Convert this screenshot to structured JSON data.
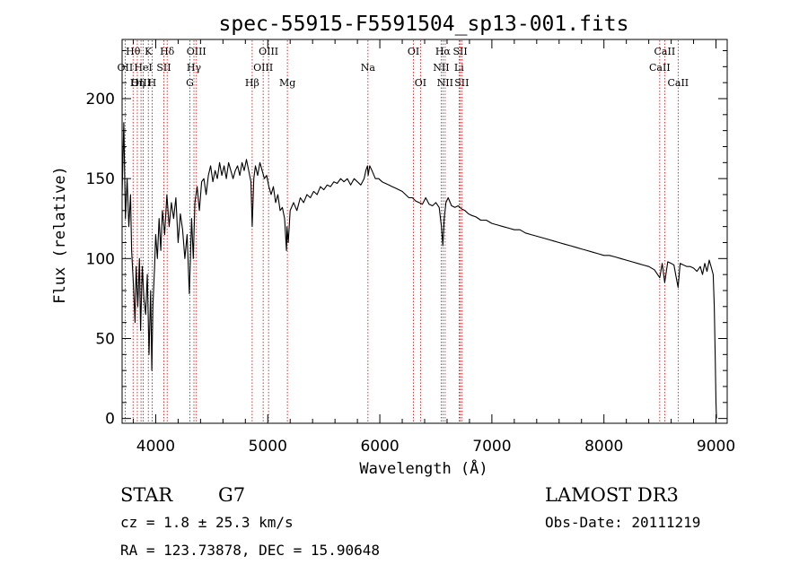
{
  "chart_data": {
    "type": "line",
    "title": "spec-55915-F5591504_sp13-001.fits",
    "xlabel": "Wavelength (Å)",
    "ylabel": "Flux (relative)",
    "xlim": [
      3700,
      9100
    ],
    "ylim": [
      -3,
      237
    ],
    "x_ticks": [
      {
        "value": 4000,
        "label": "4000"
      },
      {
        "value": 5000,
        "label": "5000"
      },
      {
        "value": 6000,
        "label": "6000"
      },
      {
        "value": 7000,
        "label": "7000"
      },
      {
        "value": 8000,
        "label": "8000"
      },
      {
        "value": 9000,
        "label": "9000"
      }
    ],
    "y_ticks": [
      {
        "value": 0,
        "label": "0"
      },
      {
        "value": 50,
        "label": "50"
      },
      {
        "value": 100,
        "label": "100"
      },
      {
        "value": 150,
        "label": "150"
      },
      {
        "value": 200,
        "label": "200"
      }
    ],
    "x_minor_step": 200,
    "y_minor_step": 10,
    "line_color": "#000000",
    "marker_color": "#cc0000",
    "series": [
      {
        "name": "flux",
        "points": [
          [
            3700,
            140
          ],
          [
            3715,
            185
          ],
          [
            3730,
            125
          ],
          [
            3745,
            150
          ],
          [
            3760,
            120
          ],
          [
            3775,
            140
          ],
          [
            3785,
            105
          ],
          [
            3800,
            85
          ],
          [
            3815,
            60
          ],
          [
            3825,
            95
          ],
          [
            3840,
            70
          ],
          [
            3855,
            100
          ],
          [
            3865,
            55
          ],
          [
            3880,
            95
          ],
          [
            3895,
            75
          ],
          [
            3910,
            65
          ],
          [
            3925,
            90
          ],
          [
            3940,
            40
          ],
          [
            3955,
            80
          ],
          [
            3965,
            30
          ],
          [
            3975,
            70
          ],
          [
            3990,
            95
          ],
          [
            4000,
            115
          ],
          [
            4015,
            100
          ],
          [
            4030,
            125
          ],
          [
            4045,
            105
          ],
          [
            4060,
            130
          ],
          [
            4080,
            115
          ],
          [
            4100,
            140
          ],
          [
            4120,
            120
          ],
          [
            4140,
            135
          ],
          [
            4160,
            125
          ],
          [
            4180,
            138
          ],
          [
            4200,
            110
          ],
          [
            4220,
            128
          ],
          [
            4240,
            118
          ],
          [
            4260,
            100
          ],
          [
            4280,
            115
          ],
          [
            4300,
            78
          ],
          [
            4320,
            125
          ],
          [
            4335,
            100
          ],
          [
            4350,
            135
          ],
          [
            4370,
            145
          ],
          [
            4390,
            130
          ],
          [
            4410,
            148
          ],
          [
            4430,
            150
          ],
          [
            4450,
            140
          ],
          [
            4470,
            152
          ],
          [
            4490,
            158
          ],
          [
            4510,
            148
          ],
          [
            4530,
            155
          ],
          [
            4550,
            150
          ],
          [
            4570,
            160
          ],
          [
            4590,
            152
          ],
          [
            4610,
            158
          ],
          [
            4630,
            150
          ],
          [
            4650,
            160
          ],
          [
            4670,
            155
          ],
          [
            4690,
            150
          ],
          [
            4710,
            155
          ],
          [
            4730,
            158
          ],
          [
            4750,
            152
          ],
          [
            4770,
            160
          ],
          [
            4790,
            155
          ],
          [
            4810,
            162
          ],
          [
            4830,
            155
          ],
          [
            4850,
            148
          ],
          [
            4861,
            120
          ],
          [
            4875,
            150
          ],
          [
            4890,
            158
          ],
          [
            4910,
            152
          ],
          [
            4930,
            160
          ],
          [
            4950,
            155
          ],
          [
            4970,
            150
          ],
          [
            4990,
            152
          ],
          [
            5010,
            145
          ],
          [
            5030,
            140
          ],
          [
            5050,
            145
          ],
          [
            5070,
            135
          ],
          [
            5090,
            140
          ],
          [
            5110,
            130
          ],
          [
            5130,
            132
          ],
          [
            5150,
            125
          ],
          [
            5167,
            105
          ],
          [
            5172,
            120
          ],
          [
            5183,
            110
          ],
          [
            5200,
            130
          ],
          [
            5230,
            135
          ],
          [
            5260,
            130
          ],
          [
            5290,
            138
          ],
          [
            5320,
            135
          ],
          [
            5350,
            140
          ],
          [
            5380,
            138
          ],
          [
            5410,
            142
          ],
          [
            5440,
            140
          ],
          [
            5470,
            145
          ],
          [
            5500,
            143
          ],
          [
            5530,
            146
          ],
          [
            5560,
            145
          ],
          [
            5590,
            148
          ],
          [
            5620,
            147
          ],
          [
            5650,
            150
          ],
          [
            5680,
            148
          ],
          [
            5710,
            150
          ],
          [
            5740,
            146
          ],
          [
            5770,
            150
          ],
          [
            5800,
            148
          ],
          [
            5830,
            146
          ],
          [
            5860,
            150
          ],
          [
            5875,
            155
          ],
          [
            5890,
            158
          ],
          [
            5896,
            152
          ],
          [
            5910,
            158
          ],
          [
            5930,
            155
          ],
          [
            5960,
            150
          ],
          [
            5990,
            150
          ],
          [
            6020,
            148
          ],
          [
            6050,
            147
          ],
          [
            6080,
            146
          ],
          [
            6110,
            145
          ],
          [
            6140,
            144
          ],
          [
            6170,
            143
          ],
          [
            6200,
            142
          ],
          [
            6230,
            140
          ],
          [
            6260,
            138
          ],
          [
            6290,
            138
          ],
          [
            6320,
            136
          ],
          [
            6350,
            135
          ],
          [
            6380,
            134
          ],
          [
            6410,
            138
          ],
          [
            6440,
            134
          ],
          [
            6470,
            133
          ],
          [
            6500,
            135
          ],
          [
            6530,
            132
          ],
          [
            6550,
            120
          ],
          [
            6563,
            108
          ],
          [
            6575,
            125
          ],
          [
            6590,
            135
          ],
          [
            6610,
            138
          ],
          [
            6640,
            133
          ],
          [
            6670,
            132
          ],
          [
            6700,
            133
          ],
          [
            6730,
            131
          ],
          [
            6760,
            130
          ],
          [
            6790,
            128
          ],
          [
            6820,
            127
          ],
          [
            6860,
            126
          ],
          [
            6900,
            124
          ],
          [
            6950,
            124
          ],
          [
            7000,
            122
          ],
          [
            7050,
            121
          ],
          [
            7100,
            120
          ],
          [
            7150,
            119
          ],
          [
            7200,
            118
          ],
          [
            7250,
            118
          ],
          [
            7300,
            116
          ],
          [
            7350,
            115
          ],
          [
            7400,
            114
          ],
          [
            7450,
            113
          ],
          [
            7500,
            112
          ],
          [
            7550,
            111
          ],
          [
            7600,
            110
          ],
          [
            7650,
            109
          ],
          [
            7700,
            108
          ],
          [
            7750,
            107
          ],
          [
            7800,
            106
          ],
          [
            7850,
            105
          ],
          [
            7900,
            104
          ],
          [
            7950,
            103
          ],
          [
            8000,
            102
          ],
          [
            8050,
            102
          ],
          [
            8100,
            101
          ],
          [
            8150,
            100
          ],
          [
            8200,
            99
          ],
          [
            8250,
            98
          ],
          [
            8300,
            97
          ],
          [
            8350,
            96
          ],
          [
            8400,
            95
          ],
          [
            8450,
            93
          ],
          [
            8498,
            88
          ],
          [
            8520,
            97
          ],
          [
            8542,
            85
          ],
          [
            8570,
            98
          ],
          [
            8600,
            97
          ],
          [
            8625,
            96
          ],
          [
            8640,
            90
          ],
          [
            8662,
            82
          ],
          [
            8680,
            97
          ],
          [
            8710,
            96
          ],
          [
            8740,
            95
          ],
          [
            8770,
            95
          ],
          [
            8800,
            94
          ],
          [
            8830,
            92
          ],
          [
            8860,
            95
          ],
          [
            8880,
            90
          ],
          [
            8900,
            97
          ],
          [
            8920,
            92
          ],
          [
            8940,
            99
          ],
          [
            8960,
            94
          ],
          [
            8975,
            90
          ],
          [
            8985,
            70
          ],
          [
            8993,
            40
          ],
          [
            9000,
            10
          ],
          [
            9005,
            0
          ]
        ]
      }
    ],
    "line_markers": [
      {
        "label": "Hθ",
        "wavelength": 3798,
        "row": 1
      },
      {
        "label": "OII",
        "wavelength": 3727,
        "row": 2
      },
      {
        "label": "OIII",
        "wavelength": 3869,
        "row": 3
      },
      {
        "label": "K",
        "wavelength": 3934,
        "row": 1
      },
      {
        "label": "HeI",
        "wavelength": 3889,
        "row": 2
      },
      {
        "label": "Hη",
        "wavelength": 3836,
        "row": 3
      },
      {
        "label": "Hδ",
        "wavelength": 4102,
        "row": 1
      },
      {
        "label": "SII",
        "wavelength": 4072,
        "row": 2
      },
      {
        "label": "H",
        "wavelength": 3968,
        "row": 3
      },
      {
        "label": "OIII",
        "wavelength": 4363,
        "row": 1
      },
      {
        "label": "Hγ",
        "wavelength": 4341,
        "row": 2
      },
      {
        "label": "G",
        "wavelength": 4305,
        "row": 3
      },
      {
        "label": "Hβ",
        "wavelength": 4861,
        "row": 3
      },
      {
        "label": "OIII",
        "wavelength": 5007,
        "row": 1
      },
      {
        "label": "OIII",
        "wavelength": 4959,
        "row": 2
      },
      {
        "label": "Mg",
        "wavelength": 5175,
        "row": 3
      },
      {
        "label": "Na",
        "wavelength": 5894,
        "row": 2
      },
      {
        "label": "OI",
        "wavelength": 6300,
        "row": 1
      },
      {
        "label": "OI",
        "wavelength": 6363,
        "row": 3
      },
      {
        "label": "Hα",
        "wavelength": 6563,
        "row": 1
      },
      {
        "label": "NII",
        "wavelength": 6548,
        "row": 2
      },
      {
        "label": "NII",
        "wavelength": 6583,
        "row": 3
      },
      {
        "label": "SII",
        "wavelength": 6717,
        "row": 1
      },
      {
        "label": "Li",
        "wavelength": 6707,
        "row": 2
      },
      {
        "label": "SII",
        "wavelength": 6731,
        "row": 3
      },
      {
        "label": "CaII",
        "wavelength": 8542,
        "row": 1
      },
      {
        "label": "CaII",
        "wavelength": 8498,
        "row": 2
      },
      {
        "label": "CaII",
        "wavelength": 8662,
        "row": 3
      }
    ]
  },
  "info": {
    "class": "STAR",
    "subclass": "G7",
    "redshift": "cz = 1.8 ± 25.3 km/s",
    "coords": "RA = 123.73878, DEC =  15.90648",
    "survey": "LAMOST DR3",
    "obs_date": "Obs-Date: 20111219"
  }
}
